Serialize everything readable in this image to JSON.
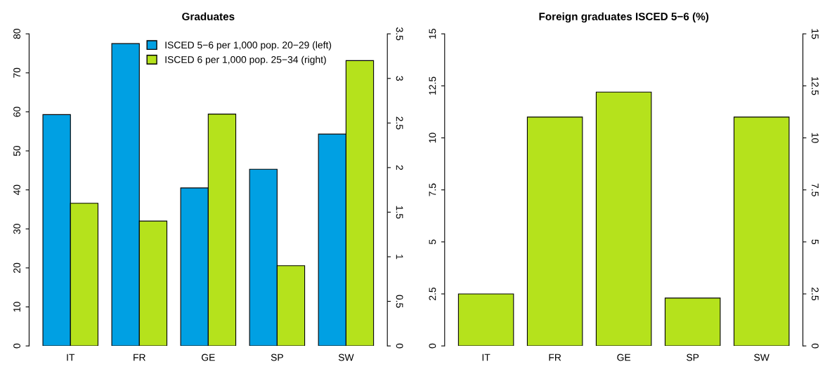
{
  "chart_data": [
    {
      "type": "bar",
      "title": "Graduates",
      "categories": [
        "IT",
        "FR",
        "GE",
        "SP",
        "SW"
      ],
      "series": [
        {
          "name": "ISCED 5−6 per 1,000 pop. 20−29 (left)",
          "color": "#00a0e3",
          "values": [
            59.3,
            77.5,
            40.5,
            45.3,
            54.3
          ]
        },
        {
          "name": "ISCED 6 per 1,000 pop. 25−34 (right)",
          "color": "#b5e21c",
          "values": [
            1.6,
            1.4,
            2.6,
            0.9,
            3.2
          ],
          "axis": "y2"
        }
      ],
      "ylim": [
        0,
        80
      ],
      "yticks": [
        0,
        10,
        20,
        30,
        40,
        50,
        60,
        70,
        80
      ],
      "y2lim": [
        0,
        3.5
      ],
      "y2ticks": [
        0,
        0.5,
        1,
        1.5,
        2,
        2.5,
        3,
        3.5
      ],
      "legend": "top",
      "grid": false
    },
    {
      "type": "bar",
      "title": "Foreign graduates ISCED 5−6 (%)",
      "categories": [
        "IT",
        "FR",
        "GE",
        "SP",
        "SW"
      ],
      "series": [
        {
          "color": "#b5e21c",
          "values": [
            2.5,
            11,
            12.2,
            2.3,
            11
          ]
        }
      ],
      "ylim": [
        0,
        15
      ],
      "yticks": [
        0,
        2.5,
        5,
        7.5,
        10,
        12.5,
        15
      ],
      "y2lim": [
        0,
        15
      ],
      "y2ticks": [
        0,
        2.5,
        5,
        7.5,
        10,
        12.5,
        15
      ],
      "grid": false
    }
  ]
}
